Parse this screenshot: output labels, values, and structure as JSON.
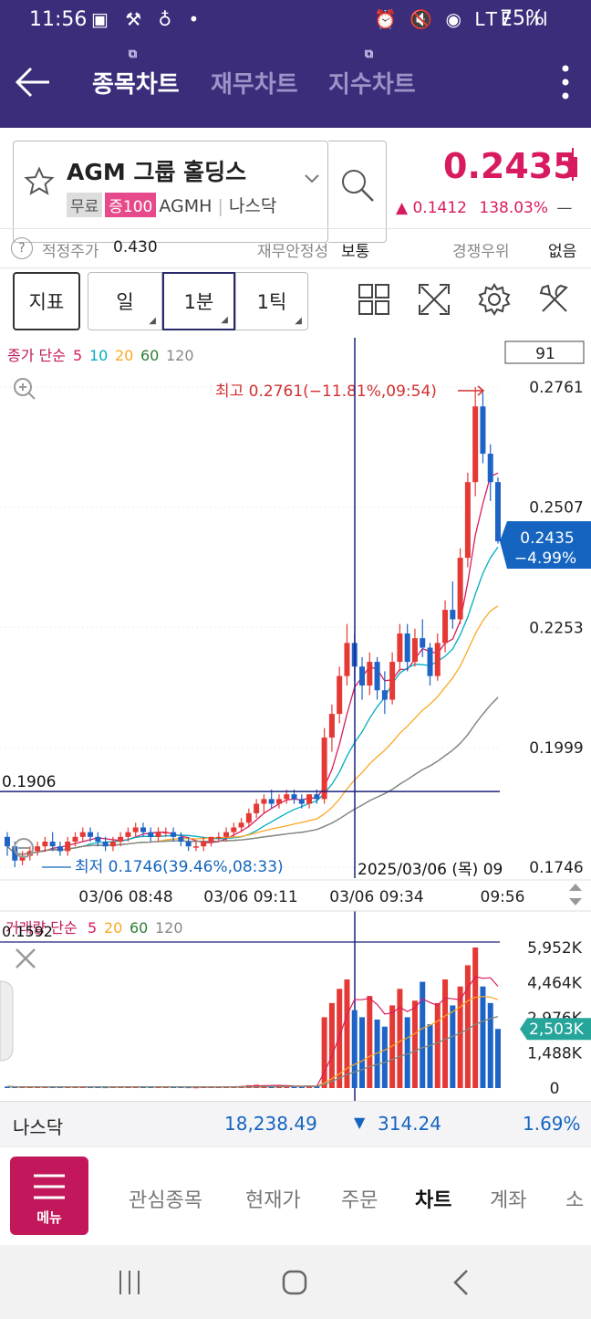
{
  "status_bar": {
    "time": "11:56",
    "left_icons": "▣ ⚒ ♁ •",
    "right_icons": "⏰ 🔇 ◉ LTE ıll",
    "battery": "75%"
  },
  "app_bar": {
    "tabs": [
      {
        "label": "종목차트",
        "active": true
      },
      {
        "label": "재무차트",
        "active": false
      },
      {
        "label": "지수차트",
        "active": false
      }
    ]
  },
  "stock": {
    "name": "AGM 그룹 홀딩스",
    "tags": [
      "무료",
      "증100"
    ],
    "ticker": "AGMH",
    "market": "나스닥",
    "price": "0.2435",
    "change_arrow": "▲",
    "change": "0.1412",
    "change_pct": "138.03%",
    "dash": "—"
  },
  "info_row": {
    "help": "?",
    "fair_price_label": "적정주가",
    "fair_price": "0.430",
    "stability_label": "재무안정성",
    "stability": "보통",
    "competition_label": "경쟁우위",
    "competition": "없음"
  },
  "toolbar": {
    "indicator": "지표",
    "day": "일",
    "min1": "1분",
    "tick1": "1틱"
  },
  "chart_data": {
    "type": "candlestick",
    "legend_price": {
      "prefix": "종가 단순",
      "periods": [
        "5",
        "10",
        "20",
        "60",
        "120"
      ],
      "colors": [
        "#d81b60",
        "#00acc1",
        "#f9a825",
        "#2e7d32",
        "#888888"
      ]
    },
    "count_box": "91",
    "y_axis_labels": [
      "0.2761",
      "0.2507",
      "0.2253",
      "0.1999",
      "0.1746"
    ],
    "ylim": [
      0.1746,
      0.2761
    ],
    "high_label": "최고 0.2761(−11.81%,09:54)",
    "low_label": "최저 0.1746(39.46%,08:33)",
    "crosshair_price": "0.1906",
    "crosshair_price_value": 0.1906,
    "crosshair_date": "2025/03/06 (목) 09",
    "current_price": "0.2435",
    "current_pct": "−4.99%",
    "x_axis_labels": [
      "03/06 08:48",
      "03/06 09:11",
      "03/06 09:34",
      "09:56"
    ],
    "candles": [
      [
        0.181,
        0.182,
        0.177,
        0.179
      ],
      [
        0.179,
        0.18,
        0.1746,
        0.176
      ],
      [
        0.176,
        0.178,
        0.175,
        0.177
      ],
      [
        0.177,
        0.179,
        0.176,
        0.178
      ],
      [
        0.178,
        0.18,
        0.177,
        0.179
      ],
      [
        0.179,
        0.181,
        0.178,
        0.18
      ],
      [
        0.18,
        0.182,
        0.178,
        0.179
      ],
      [
        0.179,
        0.18,
        0.177,
        0.178
      ],
      [
        0.178,
        0.181,
        0.177,
        0.18
      ],
      [
        0.18,
        0.182,
        0.179,
        0.181
      ],
      [
        0.181,
        0.183,
        0.18,
        0.182
      ],
      [
        0.182,
        0.183,
        0.18,
        0.181
      ],
      [
        0.181,
        0.182,
        0.179,
        0.18
      ],
      [
        0.18,
        0.181,
        0.178,
        0.179
      ],
      [
        0.179,
        0.181,
        0.178,
        0.18
      ],
      [
        0.18,
        0.182,
        0.179,
        0.181
      ],
      [
        0.181,
        0.183,
        0.18,
        0.182
      ],
      [
        0.182,
        0.184,
        0.181,
        0.183
      ],
      [
        0.183,
        0.184,
        0.181,
        0.182
      ],
      [
        0.182,
        0.183,
        0.18,
        0.181
      ],
      [
        0.181,
        0.183,
        0.18,
        0.182
      ],
      [
        0.182,
        0.183,
        0.181,
        0.182
      ],
      [
        0.182,
        0.183,
        0.18,
        0.181
      ],
      [
        0.181,
        0.182,
        0.179,
        0.18
      ],
      [
        0.18,
        0.181,
        0.178,
        0.179
      ],
      [
        0.179,
        0.18,
        0.178,
        0.179
      ],
      [
        0.179,
        0.181,
        0.178,
        0.18
      ],
      [
        0.18,
        0.181,
        0.179,
        0.181
      ],
      [
        0.181,
        0.182,
        0.18,
        0.181
      ],
      [
        0.181,
        0.183,
        0.18,
        0.182
      ],
      [
        0.182,
        0.184,
        0.181,
        0.183
      ],
      [
        0.183,
        0.185,
        0.182,
        0.184
      ],
      [
        0.184,
        0.187,
        0.183,
        0.186
      ],
      [
        0.186,
        0.189,
        0.185,
        0.188
      ],
      [
        0.188,
        0.19,
        0.186,
        0.189
      ],
      [
        0.189,
        0.191,
        0.187,
        0.188
      ],
      [
        0.188,
        0.19,
        0.187,
        0.189
      ],
      [
        0.189,
        0.191,
        0.188,
        0.19
      ],
      [
        0.19,
        0.191,
        0.188,
        0.189
      ],
      [
        0.189,
        0.19,
        0.187,
        0.188
      ],
      [
        0.188,
        0.19,
        0.187,
        0.19
      ],
      [
        0.19,
        0.191,
        0.188,
        0.189
      ],
      [
        0.189,
        0.204,
        0.188,
        0.202
      ],
      [
        0.202,
        0.209,
        0.199,
        0.207
      ],
      [
        0.207,
        0.217,
        0.205,
        0.215
      ],
      [
        0.215,
        0.226,
        0.213,
        0.222
      ],
      [
        0.222,
        0.224,
        0.214,
        0.217
      ],
      [
        0.217,
        0.219,
        0.21,
        0.213
      ],
      [
        0.213,
        0.22,
        0.211,
        0.218
      ],
      [
        0.218,
        0.219,
        0.21,
        0.212
      ],
      [
        0.212,
        0.216,
        0.207,
        0.21
      ],
      [
        0.21,
        0.22,
        0.209,
        0.218
      ],
      [
        0.218,
        0.226,
        0.216,
        0.224
      ],
      [
        0.224,
        0.226,
        0.216,
        0.218
      ],
      [
        0.218,
        0.225,
        0.217,
        0.223
      ],
      [
        0.223,
        0.227,
        0.219,
        0.221
      ],
      [
        0.221,
        0.222,
        0.213,
        0.215
      ],
      [
        0.215,
        0.224,
        0.214,
        0.222
      ],
      [
        0.222,
        0.231,
        0.22,
        0.229
      ],
      [
        0.229,
        0.235,
        0.225,
        0.227
      ],
      [
        0.227,
        0.242,
        0.226,
        0.24
      ],
      [
        0.24,
        0.258,
        0.238,
        0.256
      ],
      [
        0.256,
        0.2761,
        0.253,
        0.272
      ],
      [
        0.272,
        0.275,
        0.26,
        0.262
      ],
      [
        0.262,
        0.264,
        0.252,
        0.256
      ],
      [
        0.256,
        0.257,
        0.243,
        0.2435
      ]
    ],
    "volume_legend": {
      "prefix": "거래량 단순",
      "periods": [
        "5",
        "20",
        "60",
        "120"
      ],
      "colors": [
        "#d81b60",
        "#f9a825",
        "#2e7d32",
        "#888888"
      ]
    },
    "volume_crosshair": "0.1592",
    "volume_axis_labels": [
      "5,952K",
      "4,464K",
      "2,976K",
      "1,488K",
      "0"
    ],
    "volume_ylim": [
      0,
      5952
    ],
    "current_volume": "2,503K",
    "volumes": [
      60,
      50,
      40,
      45,
      55,
      50,
      45,
      40,
      50,
      60,
      55,
      45,
      40,
      35,
      45,
      50,
      60,
      70,
      55,
      45,
      50,
      40,
      45,
      40,
      35,
      30,
      40,
      45,
      50,
      60,
      70,
      80,
      120,
      140,
      110,
      90,
      100,
      80,
      70,
      90,
      100,
      80,
      3000,
      3600,
      4200,
      4600,
      3300,
      3000,
      3900,
      2900,
      2600,
      3500,
      4200,
      3000,
      3700,
      4500,
      2700,
      3600,
      4600,
      3500,
      4300,
      5200,
      5952,
      4300,
      3600,
      2503
    ]
  },
  "index_bar": {
    "name": "나스닥",
    "value": "18,238.49",
    "arrow": "▼",
    "change": "314.24",
    "pct": "1.69%"
  },
  "bottom_nav": {
    "menu_label": "메뉴",
    "items": [
      "관심종목",
      "현재가",
      "주문",
      "차트",
      "계좌",
      "소"
    ]
  }
}
